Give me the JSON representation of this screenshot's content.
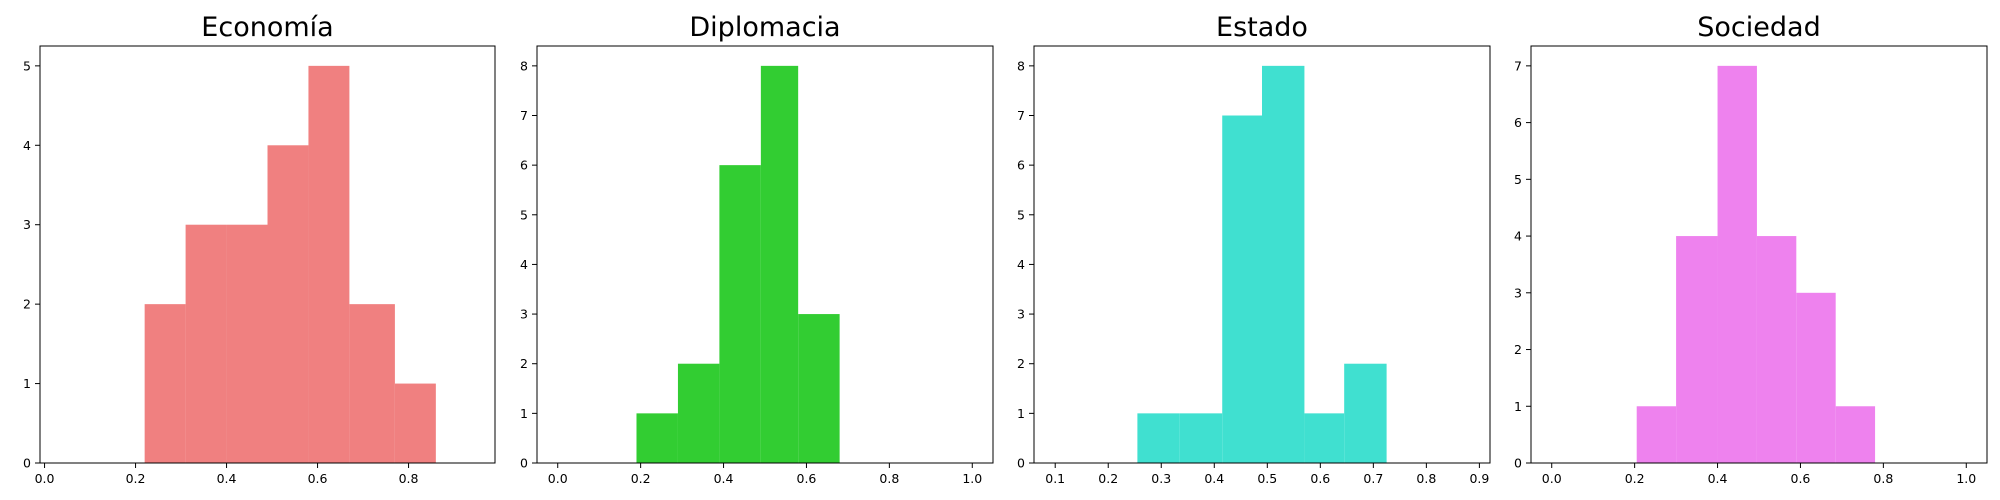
{
  "chart_data": [
    {
      "type": "histogram",
      "title": "Economía",
      "color": "#F08080",
      "bins": [
        {
          "start": 0.22,
          "end": 0.31,
          "count": 2
        },
        {
          "start": 0.31,
          "end": 0.4,
          "count": 3
        },
        {
          "start": 0.4,
          "end": 0.49,
          "count": 3
        },
        {
          "start": 0.49,
          "end": 0.58,
          "count": 4
        },
        {
          "start": 0.58,
          "end": 0.67,
          "count": 5
        },
        {
          "start": 0.67,
          "end": 0.77,
          "count": 2
        },
        {
          "start": 0.77,
          "end": 0.86,
          "count": 1
        }
      ],
      "xlim": [
        -0.01,
        0.99
      ],
      "ylim": [
        0,
        5.25
      ],
      "xticks": [
        "0.0",
        "0.2",
        "0.4",
        "0.6",
        "0.8"
      ],
      "yticks": [
        "0",
        "1",
        "2",
        "3",
        "4",
        "5"
      ]
    },
    {
      "type": "histogram",
      "title": "Diplomacia",
      "color": "#32CD32",
      "bins": [
        {
          "start": 0.19,
          "end": 0.29,
          "count": 1
        },
        {
          "start": 0.29,
          "end": 0.39,
          "count": 2
        },
        {
          "start": 0.39,
          "end": 0.49,
          "count": 6
        },
        {
          "start": 0.49,
          "end": 0.58,
          "count": 8
        },
        {
          "start": 0.58,
          "end": 0.68,
          "count": 3
        }
      ],
      "xlim": [
        -0.05,
        1.05
      ],
      "ylim": [
        0,
        8.4
      ],
      "xticks": [
        "0.0",
        "0.2",
        "0.4",
        "0.6",
        "0.8",
        "1.0"
      ],
      "yticks": [
        "0",
        "1",
        "2",
        "3",
        "4",
        "5",
        "6",
        "7",
        "8"
      ]
    },
    {
      "type": "histogram",
      "title": "Estado",
      "color": "#40E0D0",
      "bins": [
        {
          "start": 0.255,
          "end": 0.335,
          "count": 1
        },
        {
          "start": 0.335,
          "end": 0.415,
          "count": 1
        },
        {
          "start": 0.415,
          "end": 0.49,
          "count": 7
        },
        {
          "start": 0.49,
          "end": 0.57,
          "count": 8
        },
        {
          "start": 0.57,
          "end": 0.645,
          "count": 1
        },
        {
          "start": 0.645,
          "end": 0.725,
          "count": 2
        }
      ],
      "xlim": [
        0.06,
        0.92
      ],
      "ylim": [
        0,
        8.4
      ],
      "xticks": [
        "0.1",
        "0.2",
        "0.3",
        "0.4",
        "0.5",
        "0.6",
        "0.7",
        "0.8",
        "0.9"
      ],
      "yticks": [
        "0",
        "1",
        "2",
        "3",
        "4",
        "5",
        "6",
        "7",
        "8"
      ]
    },
    {
      "type": "histogram",
      "title": "Sociedad",
      "color": "#EE82EE",
      "bins": [
        {
          "start": 0.205,
          "end": 0.3,
          "count": 1
        },
        {
          "start": 0.3,
          "end": 0.4,
          "count": 4
        },
        {
          "start": 0.4,
          "end": 0.495,
          "count": 7
        },
        {
          "start": 0.495,
          "end": 0.59,
          "count": 4
        },
        {
          "start": 0.59,
          "end": 0.685,
          "count": 3
        },
        {
          "start": 0.685,
          "end": 0.78,
          "count": 1
        }
      ],
      "xlim": [
        -0.05,
        1.05
      ],
      "ylim": [
        0,
        7.35
      ],
      "xticks": [
        "0.0",
        "0.2",
        "0.4",
        "0.6",
        "0.8",
        "1.0"
      ],
      "yticks": [
        "0",
        "1",
        "2",
        "3",
        "4",
        "5",
        "6",
        "7"
      ]
    }
  ]
}
